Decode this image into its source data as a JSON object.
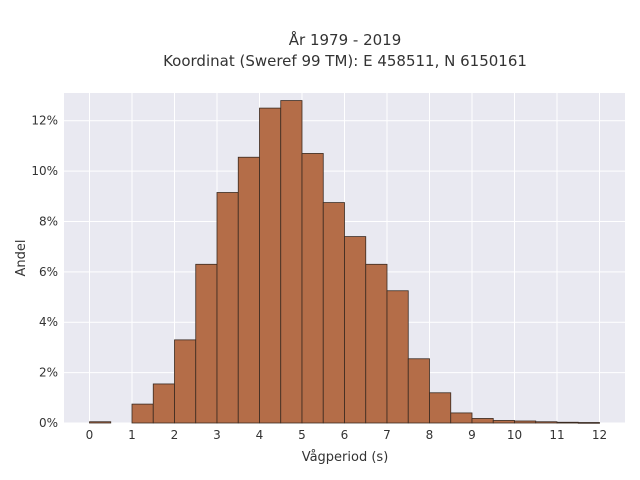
{
  "chart_data": {
    "type": "bar",
    "title_line1": "År 1979 - 2019",
    "title_line2": "Koordinat (Sweref 99 TM): E 458511, N 6150161",
    "xlabel": "Vågperiod (s)",
    "ylabel": "Andel",
    "xlim": [
      -0.6,
      12.6
    ],
    "ylim": [
      0,
      13.1
    ],
    "x_ticks": [
      0,
      1,
      2,
      3,
      4,
      5,
      6,
      7,
      8,
      9,
      10,
      11,
      12
    ],
    "y_ticks": [
      0,
      2,
      4,
      6,
      8,
      10,
      12
    ],
    "y_tick_labels": [
      "0%",
      "2%",
      "4%",
      "6%",
      "8%",
      "10%",
      "12%"
    ],
    "bin_width": 0.5,
    "bin_starts": [
      0,
      0.5,
      1,
      1.5,
      2,
      2.5,
      3,
      3.5,
      4,
      4.5,
      5,
      5.5,
      6,
      6.5,
      7,
      7.5,
      8,
      8.5,
      9,
      9.5,
      10,
      10.5,
      11,
      11.5
    ],
    "values": [
      0.05,
      0,
      0.75,
      1.55,
      3.3,
      6.3,
      9.15,
      10.55,
      12.5,
      12.8,
      10.7,
      8.75,
      7.4,
      6.3,
      5.25,
      2.55,
      1.2,
      0.4,
      0.18,
      0.1,
      0.08,
      0.05,
      0.03,
      0.02
    ],
    "grid": true,
    "colors": {
      "bar_fill": "#b46d48",
      "bar_edge": "#3a2a20",
      "plot_background": "#e9e9f1",
      "grid": "#ffffff"
    }
  }
}
